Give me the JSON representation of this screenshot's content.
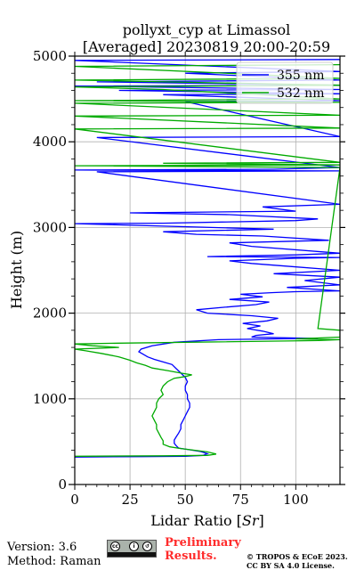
{
  "chart_data": {
    "type": "line",
    "title": "pollyxt_cyp at Limassol",
    "subtitle": "[Averaged] 20230819 20:00-20:59",
    "xlabel": "Lidar Ratio [",
    "xlabel_math": "Sr",
    "xlabel_end": "]",
    "ylabel": "Height (m)",
    "xlim": [
      0,
      120
    ],
    "ylim": [
      0,
      5000
    ],
    "xticks": [
      0,
      25,
      50,
      75,
      100
    ],
    "yticks": [
      0,
      1000,
      2000,
      3000,
      4000,
      5000
    ],
    "grid": true,
    "legend_position": "top-right",
    "colors": {
      "355 nm": "#0000ff",
      "532 nm": "#00aa00"
    },
    "series": [
      {
        "name": "355 nm",
        "points": [
          [
            0,
            320
          ],
          [
            30,
            325
          ],
          [
            50,
            330
          ],
          [
            58,
            340
          ],
          [
            60,
            360
          ],
          [
            57,
            385
          ],
          [
            52,
            405
          ],
          [
            47,
            425
          ],
          [
            46,
            450
          ],
          [
            45,
            480
          ],
          [
            45,
            520
          ],
          [
            46,
            560
          ],
          [
            47,
            600
          ],
          [
            48,
            650
          ],
          [
            48,
            700
          ],
          [
            49,
            750
          ],
          [
            50,
            800
          ],
          [
            51,
            850
          ],
          [
            52,
            900
          ],
          [
            52,
            950
          ],
          [
            51,
            1000
          ],
          [
            51,
            1050
          ],
          [
            50,
            1100
          ],
          [
            50,
            1150
          ],
          [
            51,
            1200
          ],
          [
            50,
            1250
          ],
          [
            48,
            1300
          ],
          [
            46,
            1350
          ],
          [
            44,
            1400
          ],
          [
            40,
            1430
          ],
          [
            36,
            1460
          ],
          [
            33,
            1490
          ],
          [
            31,
            1520
          ],
          [
            29,
            1550
          ],
          [
            30,
            1580
          ],
          [
            35,
            1620
          ],
          [
            45,
            1660
          ],
          [
            65,
            1690
          ],
          [
            90,
            1700
          ],
          [
            110,
            1705
          ],
          [
            80,
            1720
          ],
          [
            82,
            1740
          ],
          [
            90,
            1760
          ],
          [
            85,
            1790
          ],
          [
            78,
            1820
          ],
          [
            84,
            1850
          ],
          [
            76,
            1880
          ],
          [
            87,
            1910
          ],
          [
            92,
            1940
          ],
          [
            80,
            1970
          ],
          [
            60,
            2000
          ],
          [
            55,
            2040
          ],
          [
            68,
            2070
          ],
          [
            82,
            2100
          ],
          [
            88,
            2130
          ],
          [
            70,
            2160
          ],
          [
            85,
            2190
          ],
          [
            75,
            2220
          ],
          [
            90,
            2240
          ],
          [
            100,
            2250
          ],
          [
            120,
            2260
          ],
          [
            96,
            2300
          ],
          [
            120,
            2330
          ],
          [
            104,
            2380
          ],
          [
            120,
            2420
          ],
          [
            90,
            2460
          ],
          [
            120,
            2500
          ],
          [
            95,
            2550
          ],
          [
            80,
            2580
          ],
          [
            70,
            2610
          ],
          [
            100,
            2640
          ],
          [
            120,
            2650
          ],
          [
            60,
            2660
          ],
          [
            100,
            2680
          ],
          [
            120,
            2700
          ],
          [
            80,
            2780
          ],
          [
            70,
            2820
          ],
          [
            115,
            2850
          ],
          [
            85,
            2900
          ],
          [
            55,
            2920
          ],
          [
            40,
            2950
          ],
          [
            90,
            2980
          ],
          [
            20,
            3030
          ],
          [
            0,
            3045
          ],
          [
            40,
            3050
          ],
          [
            100,
            3080
          ],
          [
            110,
            3100
          ],
          [
            70,
            3150
          ],
          [
            25,
            3170
          ],
          [
            100,
            3190
          ],
          [
            85,
            3240
          ],
          [
            120,
            3270
          ],
          [
            10,
            3650
          ],
          [
            120,
            3660
          ],
          [
            0,
            3670
          ],
          [
            90,
            3680
          ],
          [
            120,
            3700
          ],
          [
            10,
            4050
          ],
          [
            120,
            4060
          ],
          [
            50,
            4470
          ],
          [
            120,
            4480
          ],
          [
            40,
            4550
          ],
          [
            120,
            4560
          ],
          [
            20,
            4600
          ],
          [
            120,
            4610
          ],
          [
            0,
            4650
          ],
          [
            120,
            4660
          ],
          [
            10,
            4700
          ],
          [
            120,
            4720
          ],
          [
            50,
            4800
          ],
          [
            120,
            4820
          ],
          [
            0,
            4950
          ],
          [
            120,
            4960
          ]
        ]
      },
      {
        "name": "532 nm",
        "points": [
          [
            0,
            330
          ],
          [
            40,
            335
          ],
          [
            60,
            340
          ],
          [
            64,
            355
          ],
          [
            60,
            380
          ],
          [
            54,
            400
          ],
          [
            48,
            420
          ],
          [
            43,
            440
          ],
          [
            40,
            470
          ],
          [
            40,
            510
          ],
          [
            39,
            550
          ],
          [
            38,
            600
          ],
          [
            37,
            650
          ],
          [
            37,
            700
          ],
          [
            36,
            750
          ],
          [
            35,
            800
          ],
          [
            36,
            850
          ],
          [
            37,
            900
          ],
          [
            37,
            950
          ],
          [
            38,
            1000
          ],
          [
            40,
            1050
          ],
          [
            39,
            1100
          ],
          [
            40,
            1150
          ],
          [
            42,
            1200
          ],
          [
            45,
            1240
          ],
          [
            50,
            1260
          ],
          [
            53,
            1280
          ],
          [
            48,
            1300
          ],
          [
            42,
            1330
          ],
          [
            35,
            1360
          ],
          [
            32,
            1390
          ],
          [
            28,
            1420
          ],
          [
            25,
            1450
          ],
          [
            20,
            1490
          ],
          [
            12,
            1530
          ],
          [
            5,
            1560
          ],
          [
            0,
            1580
          ],
          [
            20,
            1600
          ],
          [
            8,
            1620
          ],
          [
            0,
            1640
          ],
          [
            20,
            1650
          ],
          [
            110,
            1680
          ],
          [
            120,
            1690
          ],
          [
            100,
            1700
          ],
          [
            120,
            1720
          ],
          [
            120,
            1800
          ],
          [
            110,
            1820
          ],
          [
            120,
            3700
          ],
          [
            0,
            3720
          ],
          [
            120,
            3730
          ],
          [
            40,
            3750
          ],
          [
            120,
            3760
          ],
          [
            0,
            4150
          ],
          [
            120,
            4160
          ],
          [
            0,
            4300
          ],
          [
            120,
            4310
          ],
          [
            0,
            4450
          ],
          [
            120,
            4460
          ],
          [
            0,
            4480
          ],
          [
            120,
            4500
          ],
          [
            40,
            4610
          ],
          [
            0,
            4640
          ],
          [
            120,
            4660
          ],
          [
            0,
            4720
          ],
          [
            120,
            4740
          ],
          [
            0,
            4880
          ],
          [
            120,
            4900
          ]
        ]
      }
    ]
  },
  "footer": {
    "version": "Version: 3.6",
    "method": "Method: Raman",
    "preliminary_line1": "Preliminary",
    "preliminary_line2": "Results.",
    "copyright_line1": "© TROPOS & ECoE 2023.",
    "copyright_line2": "CC BY SA 4.0 License.",
    "license_badge": "cc by sa"
  }
}
